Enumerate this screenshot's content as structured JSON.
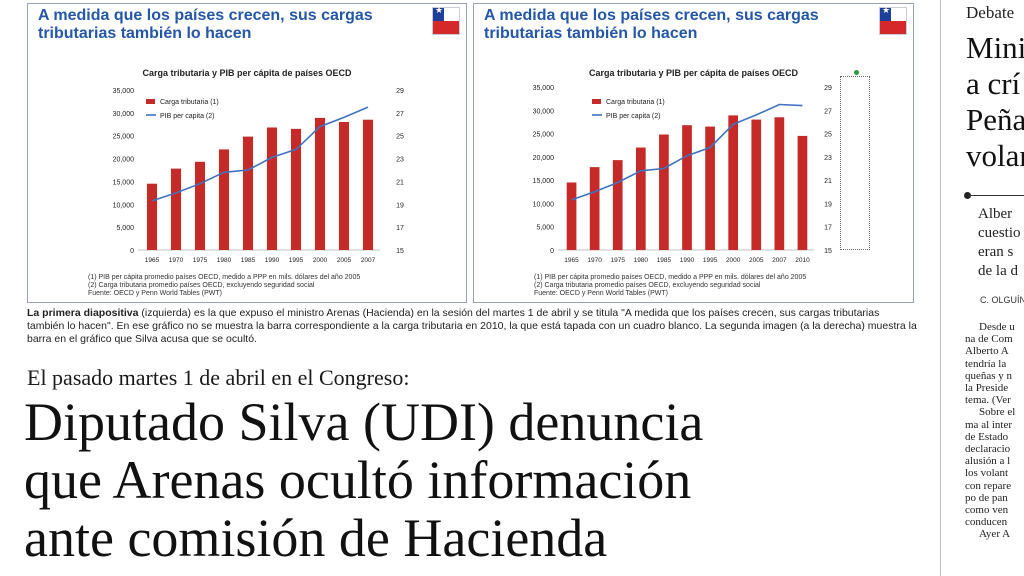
{
  "slides": [
    {
      "title_line1": "A medida que los países crecen, sus cargas",
      "title_line2": "tributarias también lo hacen",
      "chart_title": "Carga tributaria y PIB per cápita de países OECD",
      "footnotes": [
        "(1) PIB per cápita promedio países OECD, medido a PPP en mils. dólares del año 2005",
        "(2) Carga tributaria promedio países OECD, excluyendo seguridad social",
        "Fuente: OECD y Penn World Tables (PWT)"
      ]
    },
    {
      "title_line1": "A medida que los países crecen, sus cargas",
      "title_line2": "tributarias también lo hacen",
      "chart_title": "Carga tributaria y PIB per cápita de países OECD",
      "footnotes": [
        "(1) PIB per cápita promedio países OECD, medido a PPP en mils. dólares del año 2005",
        "(2) Carga tributaria promedio países OECD, excluyendo seguridad social",
        "Fuente: OECD y Penn World Tables (PWT)"
      ]
    }
  ],
  "chart_data": [
    {
      "type": "bar",
      "title": "Carga tributaria y PIB per cápita de países OECD",
      "categories": [
        "1965",
        "1970",
        "1975",
        "1980",
        "1985",
        "1990",
        "1995",
        "2000",
        "2005",
        "2007"
      ],
      "ylim": [
        0,
        35000
      ],
      "y_ticks": [
        "35,000",
        "30,000",
        "25,000",
        "20,000",
        "15,000",
        "10,000",
        "5,000",
        "0"
      ],
      "y2lim": [
        15,
        29
      ],
      "y2_ticks": [
        "29",
        "27",
        "25",
        "23",
        "21",
        "19",
        "17",
        "15"
      ],
      "series": [
        {
          "name": "Carga tributaria (1)",
          "type": "bar",
          "axis": "left",
          "color": "#c62a28",
          "values": [
            14500,
            17800,
            19300,
            22000,
            24800,
            26800,
            26500,
            28900,
            28000,
            28500
          ]
        },
        {
          "name": "PIB per capita (2)",
          "type": "line",
          "axis": "right",
          "color": "#3d73c2",
          "values": [
            19.3,
            20.0,
            20.8,
            21.8,
            22.0,
            23.1,
            23.8,
            25.8,
            26.6,
            27.5
          ]
        }
      ],
      "legend": "top-left",
      "grid": false
    },
    {
      "type": "bar",
      "title": "Carga tributaria y PIB per cápita de países OECD",
      "categories": [
        "1965",
        "1970",
        "1975",
        "1980",
        "1985",
        "1990",
        "1995",
        "2000",
        "2005",
        "2007",
        "2010"
      ],
      "ylim": [
        0,
        35000
      ],
      "y_ticks": [
        "35,000",
        "30,000",
        "25,000",
        "20,000",
        "15,000",
        "10,000",
        "5,000",
        "0"
      ],
      "y2lim": [
        15,
        29
      ],
      "y2_ticks": [
        "29",
        "27",
        "25",
        "23",
        "21",
        "19",
        "17",
        "15"
      ],
      "series": [
        {
          "name": "Carga tributaria (1)",
          "type": "bar",
          "axis": "left",
          "color": "#c62a28",
          "values": [
            14500,
            17800,
            19300,
            22000,
            24800,
            26800,
            26500,
            28900,
            28000,
            28500,
            24500
          ]
        },
        {
          "name": "PIB per capita (2)",
          "type": "line",
          "axis": "right",
          "color": "#3d73c2",
          "values": [
            19.3,
            20.0,
            20.8,
            21.8,
            22.0,
            23.1,
            23.8,
            25.8,
            26.6,
            27.5,
            27.4
          ]
        }
      ],
      "legend": "top-left",
      "grid": false
    }
  ],
  "caption": {
    "lead": "La primera diapositiva",
    "text": " (izquierda) es la que expuso el ministro Arenas (Hacienda) en la sesión del martes 1 de abril y se titula \"A medida que los países crecen, sus cargas tributarias también lo hacen\". En ese gráfico no se muestra la barra correspondiente a la carga tributaria en 2010, la que está tapada con un cuadro blanco. La segunda imagen (a la derecha) muestra la barra en el gráfico que Silva acusa que se ocultó."
  },
  "article": {
    "kicker": "El pasado martes 1 de abril en el Congreso:",
    "headline_lines": [
      "Diputado Silva (UDI) denuncia",
      "que Arenas ocultó información",
      "ante comisión de Hacienda"
    ]
  },
  "sidebar": {
    "section": "Debate",
    "headline_lines": [
      "Mini",
      "a crí",
      "Peña",
      "volan"
    ],
    "deck_lines": [
      "Alber",
      "cuestio",
      "eran s",
      "de la d"
    ],
    "byline": "C. OLGUÍN",
    "body_lines": [
      "Desde u",
      "na de Com",
      "Alberto A",
      "tendría la",
      "queñas y n",
      "la Preside",
      "tema. (Ver",
      "Sobre el",
      "ma al inter",
      "de Estado",
      "declaracio",
      "alusión a l",
      "los volant",
      "con repare",
      "po de pan",
      "como ven",
      "conducen",
      "Ayer A"
    ]
  }
}
